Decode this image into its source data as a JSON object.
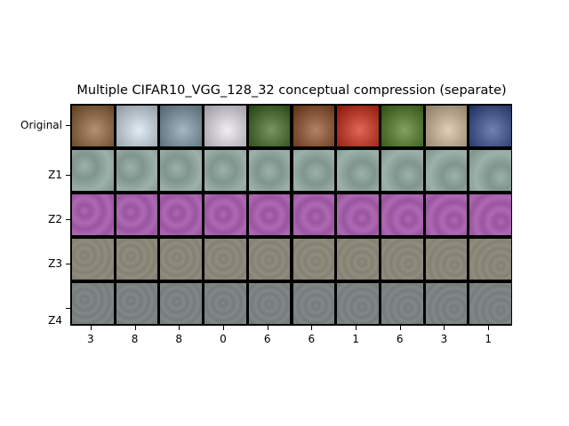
{
  "chart_data": {
    "type": "image_grid",
    "title": "Multiple CIFAR10_VGG_128_32 conceptual compression (separate)",
    "rows": [
      "Original",
      "Z1",
      "Z2",
      "Z3",
      "Z4"
    ],
    "columns": [
      "3",
      "8",
      "8",
      "0",
      "6",
      "6",
      "1",
      "6",
      "3",
      "1"
    ],
    "row_colors": {
      "Z1": "#8ea39c",
      "Z2": "#a35fa8",
      "Z3": "#8a8678",
      "Z4": "#7c8282"
    },
    "original_colors": [
      "#8a6a4a",
      "#b9c4cc",
      "#7d8f9a",
      "#c8c6cc",
      "#4f6e3a",
      "#8a5a3e",
      "#b84030",
      "#5a7a3a",
      "#b8a890",
      "#4a5a8a"
    ]
  }
}
